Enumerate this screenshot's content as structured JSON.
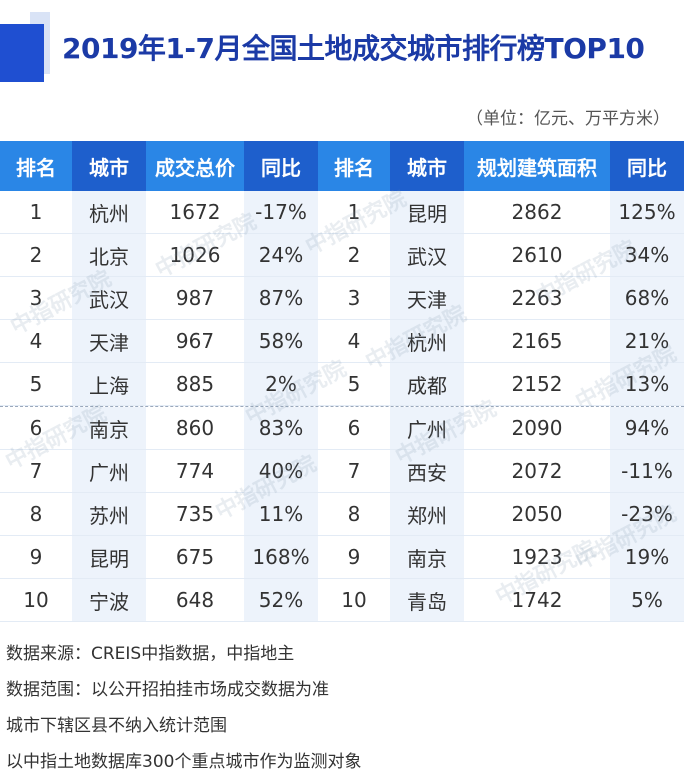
{
  "title": "2019年1-7月全国土地成交城市排行榜TOP10",
  "unit": "（单位：亿元、万平方米）",
  "headers": [
    "排名",
    "城市",
    "成交总价",
    "同比",
    "排名",
    "城市",
    "规划建筑面积",
    "同比"
  ],
  "rows": [
    [
      "1",
      "杭州",
      "1672",
      "-17%",
      "1",
      "昆明",
      "2862",
      "125%"
    ],
    [
      "2",
      "北京",
      "1026",
      "24%",
      "2",
      "武汉",
      "2610",
      "34%"
    ],
    [
      "3",
      "武汉",
      "987",
      "87%",
      "3",
      "天津",
      "2263",
      "68%"
    ],
    [
      "4",
      "天津",
      "967",
      "58%",
      "4",
      "杭州",
      "2165",
      "21%"
    ],
    [
      "5",
      "上海",
      "885",
      "2%",
      "5",
      "成都",
      "2152",
      "13%"
    ],
    [
      "6",
      "南京",
      "860",
      "83%",
      "6",
      "广州",
      "2090",
      "94%"
    ],
    [
      "7",
      "广州",
      "774",
      "40%",
      "7",
      "西安",
      "2072",
      "-11%"
    ],
    [
      "8",
      "苏州",
      "735",
      "11%",
      "8",
      "郑州",
      "2050",
      "-23%"
    ],
    [
      "9",
      "昆明",
      "675",
      "168%",
      "9",
      "南京",
      "1923",
      "19%"
    ],
    [
      "10",
      "宁波",
      "648",
      "52%",
      "10",
      "青岛",
      "1742",
      "5%"
    ]
  ],
  "footer": [
    "数据来源：CREIS中指数据，中指地主",
    "数据范围：以公开招拍挂市场成交数据为准",
    "城市下辖区县不纳入统计范围",
    "以中指土地数据库300个重点城市作为监测对象"
  ],
  "watermark": "中指研究院",
  "colors": {
    "title": "#1b3aa6",
    "header_light": "#2a86e6",
    "header_dark": "#1e5fcc",
    "row_alt": "#edf3fb",
    "accent_block": "#1f4fd1"
  }
}
